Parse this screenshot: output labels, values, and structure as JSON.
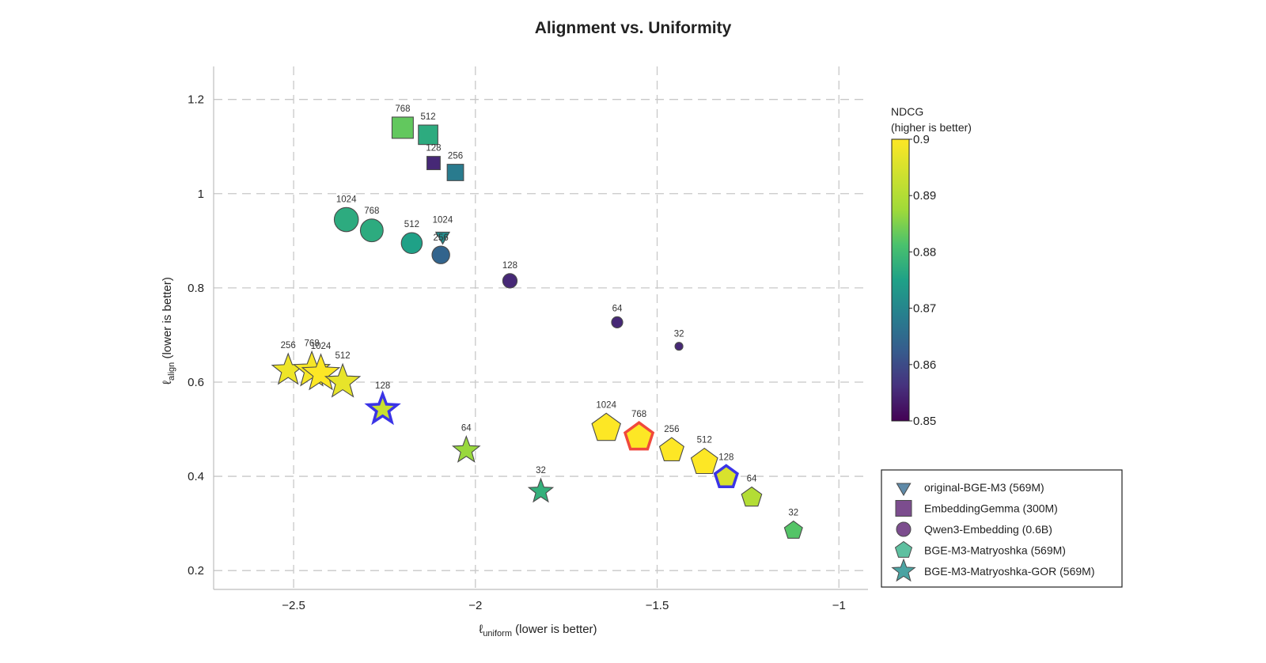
{
  "chart_data": {
    "type": "scatter",
    "title": "Alignment vs. Uniformity",
    "xlabel": {
      "main": "ℓ",
      "sub": "uniform",
      "rest": " (lower is better)"
    },
    "ylabel": {
      "main": "ℓ",
      "sub": "align",
      "rest": " (lower is better)"
    },
    "xlim": [
      -2.72,
      -0.92
    ],
    "ylim": [
      0.16,
      1.27
    ],
    "xticks": [
      -2.5,
      -2,
      -1.5,
      -1
    ],
    "xtick_labels": [
      "−2.5",
      "−2",
      "−1.5",
      "−1"
    ],
    "yticks": [
      0.2,
      0.4,
      0.6,
      0.8,
      1.0,
      1.2
    ],
    "ytick_labels": [
      "0.2",
      "0.4",
      "0.6",
      "0.8",
      "1",
      "1.2"
    ],
    "grid": true,
    "colorbar": {
      "title_line1": "NDCG",
      "title_line2": "(higher is better)",
      "range": [
        0.85,
        0.9
      ],
      "ticks": [
        0.9,
        0.89,
        0.88,
        0.87,
        0.86,
        0.85
      ],
      "tick_labels": [
        "0.9",
        "0.89",
        "0.88",
        "0.87",
        "0.86",
        "0.85"
      ],
      "colormap": "viridis"
    },
    "legend_position": "right-lower",
    "series": [
      {
        "name": "original-BGE-M3 (569M)",
        "marker": "triangle-down",
        "legend_color": "#5f8aa8",
        "points": [
          {
            "x": -2.09,
            "y": 0.91,
            "label": "1024",
            "ndcg": 0.871
          }
        ]
      },
      {
        "name": "EmbeddingGemma (300M)",
        "marker": "square",
        "legend_color": "#7c4d8e",
        "points": [
          {
            "x": -2.2,
            "y": 1.14,
            "label": "768",
            "ndcg": 0.883
          },
          {
            "x": -2.13,
            "y": 1.125,
            "label": "512",
            "ndcg": 0.877
          },
          {
            "x": -2.115,
            "y": 1.065,
            "label": "128",
            "ndcg": 0.855
          },
          {
            "x": -2.055,
            "y": 1.045,
            "label": "256",
            "ndcg": 0.868
          }
        ]
      },
      {
        "name": "Qwen3-Embedding (0.6B)",
        "marker": "circle",
        "legend_color": "#7c4d8e",
        "points": [
          {
            "x": -2.355,
            "y": 0.945,
            "label": "1024",
            "ndcg": 0.877
          },
          {
            "x": -2.285,
            "y": 0.922,
            "label": "768",
            "ndcg": 0.877
          },
          {
            "x": -2.175,
            "y": 0.895,
            "label": "512",
            "ndcg": 0.875
          },
          {
            "x": -2.095,
            "y": 0.87,
            "label": "256",
            "ndcg": 0.864
          },
          {
            "x": -1.905,
            "y": 0.815,
            "label": "128",
            "ndcg": 0.855
          },
          {
            "x": -1.61,
            "y": 0.727,
            "label": "64",
            "ndcg": 0.855
          },
          {
            "x": -1.44,
            "y": 0.676,
            "label": "32",
            "ndcg": 0.855
          }
        ]
      },
      {
        "name": "BGE-M3-Matryoshka (569M)",
        "marker": "pentagon",
        "legend_color": "#5ec0a0",
        "points": [
          {
            "x": -1.64,
            "y": 0.502,
            "label": "1024",
            "ndcg": 0.9
          },
          {
            "x": -1.55,
            "y": 0.483,
            "label": "768",
            "ndcg": 0.9,
            "highlight": "#f0493c"
          },
          {
            "x": -1.46,
            "y": 0.455,
            "label": "256",
            "ndcg": 0.9
          },
          {
            "x": -1.37,
            "y": 0.43,
            "label": "512",
            "ndcg": 0.9
          },
          {
            "x": -1.31,
            "y": 0.398,
            "label": "128",
            "ndcg": 0.895,
            "highlight": "#3b34e6"
          },
          {
            "x": -1.24,
            "y": 0.355,
            "label": "64",
            "ndcg": 0.89
          },
          {
            "x": -1.125,
            "y": 0.285,
            "label": "32",
            "ndcg": 0.882
          }
        ]
      },
      {
        "name": "BGE-M3-Matryoshka-GOR (569M)",
        "marker": "star",
        "legend_color": "#4aa3a2",
        "points": [
          {
            "x": -2.515,
            "y": 0.625,
            "label": "256",
            "ndcg": 0.898
          },
          {
            "x": -2.45,
            "y": 0.625,
            "label": "768",
            "ndcg": 0.899
          },
          {
            "x": -2.425,
            "y": 0.618,
            "label": "1024",
            "ndcg": 0.9
          },
          {
            "x": -2.365,
            "y": 0.6,
            "label": "512",
            "ndcg": 0.897
          },
          {
            "x": -2.255,
            "y": 0.542,
            "label": "128",
            "ndcg": 0.893,
            "highlight": "#3b34e6"
          },
          {
            "x": -2.025,
            "y": 0.455,
            "label": "64",
            "ndcg": 0.887
          },
          {
            "x": -1.82,
            "y": 0.368,
            "label": "32",
            "ndcg": 0.878
          }
        ]
      }
    ]
  }
}
